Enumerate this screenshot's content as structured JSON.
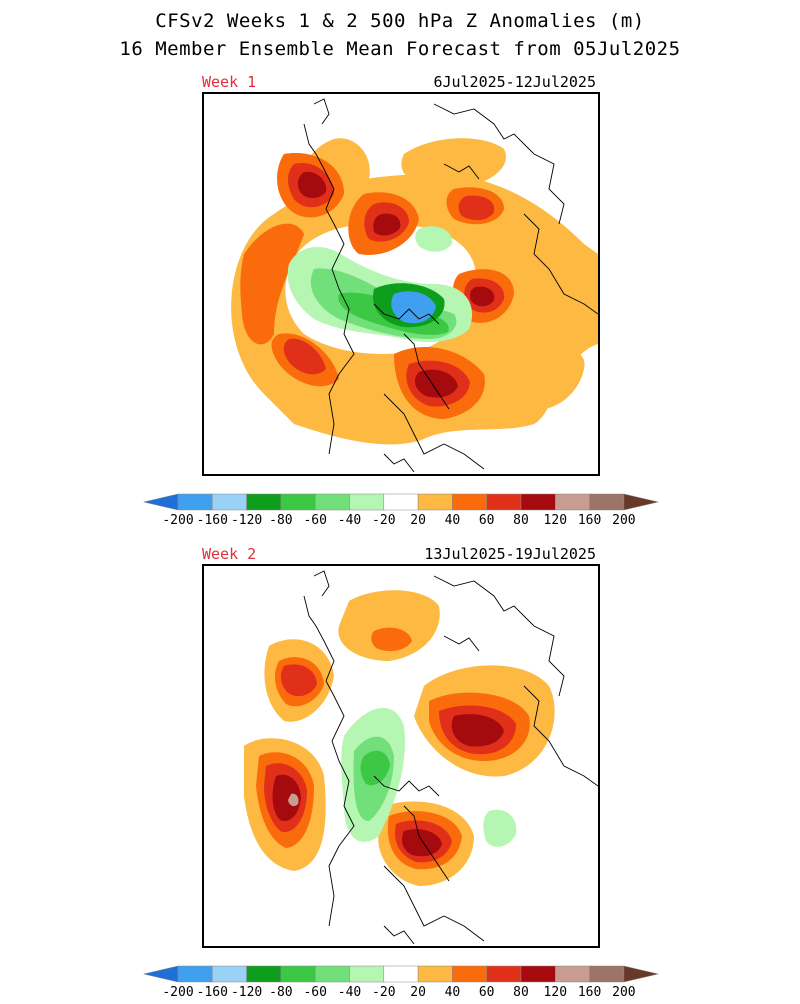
{
  "title": {
    "line1": "CFSv2 Weeks 1 & 2 500 hPa Z Anomalies (m)",
    "line2": "16 Member Ensemble Mean Forecast from 05Jul2025"
  },
  "panels": [
    {
      "label": "Week 1",
      "dates": "6Jul2025-12Jul2025"
    },
    {
      "label": "Week 2",
      "dates": "13Jul2025-19Jul2025"
    }
  ],
  "colorbar": {
    "labels": [
      "-200",
      "-160",
      "-120",
      "-80",
      "-60",
      "-40",
      "-20",
      "20",
      "40",
      "60",
      "80",
      "120",
      "160",
      "200"
    ],
    "colors": [
      "#1f6fd8",
      "#3fa0f0",
      "#9ad2f7",
      "#0c9e1c",
      "#3cc845",
      "#72e07a",
      "#b6f6b3",
      "#ffffff",
      "#fdb941",
      "#fa6b0c",
      "#e0301a",
      "#a50a0f",
      "#c89c90",
      "#9c7468",
      "#683828"
    ]
  },
  "colors": {
    "week_label": "#e0303a",
    "pos20": "#fdb941",
    "pos40": "#fa6b0c",
    "pos60": "#e0301a",
    "pos80": "#a50a0f",
    "neg20": "#b6f6b3",
    "neg40": "#72e07a",
    "neg60": "#3cc845",
    "neg80": "#0c9e1c",
    "neg120": "#3fa0f0"
  }
}
